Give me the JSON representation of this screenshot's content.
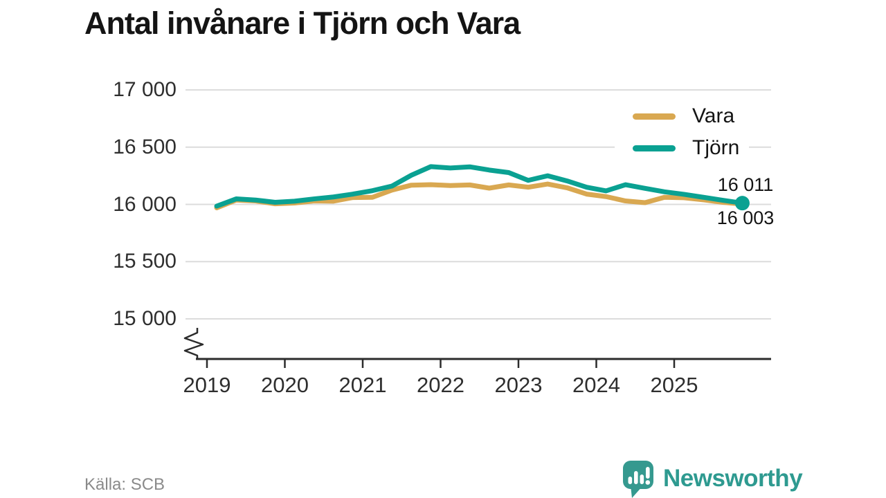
{
  "header": {
    "title": "Antal invånare i Tjörn och Vara"
  },
  "footer": {
    "source": "Källa: SCB",
    "brand": "Newsworthy",
    "brand_icon": "bar-chart-speech-bubble-icon",
    "brand_color": "#35998F"
  },
  "legend": {
    "position": "top-right",
    "items": [
      {
        "label": "Vara",
        "color": "#D9A851"
      },
      {
        "label": "Tjörn",
        "color": "#0AA192"
      }
    ]
  },
  "colors": {
    "vara_line": "#D9A851",
    "tjorn_line": "#0AA192",
    "grid": "#dcdcdc",
    "axis": "#2b2b2b",
    "text": "#141414",
    "muted_text": "#8a8a8a"
  },
  "chart_data": {
    "type": "line",
    "title": "Antal invånare i Tjörn och Vara",
    "xlabel": "",
    "ylabel": "",
    "grid": true,
    "axis_break": true,
    "ylim": [
      15000,
      17000
    ],
    "legend_position": "top-right",
    "y_ticks": [
      {
        "value": 17000,
        "label": "17 000"
      },
      {
        "value": 16500,
        "label": "16 500"
      },
      {
        "value": 16000,
        "label": "16 000"
      },
      {
        "value": 15500,
        "label": "15 500"
      },
      {
        "value": 15000,
        "label": "15 000"
      }
    ],
    "x_ticks": [
      {
        "value": 2019,
        "label": "2019"
      },
      {
        "value": 2020,
        "label": "2020"
      },
      {
        "value": 2021,
        "label": "2021"
      },
      {
        "value": 2022,
        "label": "2022"
      },
      {
        "value": 2023,
        "label": "2023"
      },
      {
        "value": 2024,
        "label": "2024"
      },
      {
        "value": 2025,
        "label": "2025"
      }
    ],
    "x": [
      2019.125,
      2019.375,
      2019.625,
      2019.875,
      2020.125,
      2020.375,
      2020.625,
      2020.875,
      2021.125,
      2021.375,
      2021.625,
      2021.875,
      2022.125,
      2022.375,
      2022.625,
      2022.875,
      2023.125,
      2023.375,
      2023.625,
      2023.875,
      2024.125,
      2024.375,
      2024.625,
      2024.875,
      2025.125,
      2025.375,
      2025.625,
      2025.875
    ],
    "series": [
      {
        "name": "Vara",
        "color": "#D9A851",
        "values": [
          15970,
          16038,
          16030,
          16005,
          16012,
          16030,
          16028,
          16060,
          16062,
          16125,
          16168,
          16172,
          16165,
          16170,
          16142,
          16170,
          16150,
          16178,
          16145,
          16090,
          16068,
          16030,
          16015,
          16062,
          16058,
          16040,
          16018,
          16003
        ]
      },
      {
        "name": "Tjörn",
        "color": "#0AA192",
        "marker_end": true,
        "values": [
          15985,
          16048,
          16038,
          16018,
          16028,
          16048,
          16065,
          16090,
          16120,
          16160,
          16255,
          16330,
          16318,
          16328,
          16300,
          16278,
          16210,
          16250,
          16205,
          16150,
          16118,
          16172,
          16140,
          16110,
          16088,
          16062,
          16036,
          16011
        ]
      }
    ],
    "end_labels": [
      {
        "series": "Tjörn",
        "text": "16 011",
        "value": 16011
      },
      {
        "series": "Vara",
        "text": "16 003",
        "value": 16003
      }
    ]
  }
}
